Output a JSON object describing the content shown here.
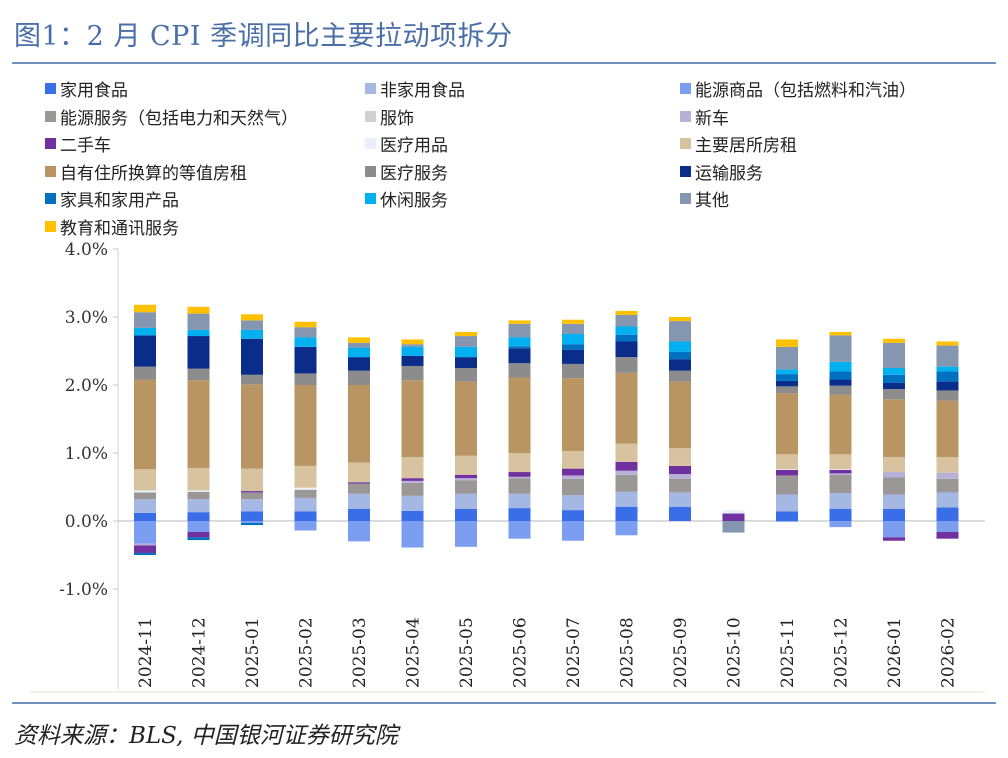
{
  "title": "图1：2 月 CPI 季调同比主要拉动项拆分",
  "source": "资料来源：BLS,  中国银河证券研究院",
  "chart_data": {
    "type": "bar",
    "stacked": true,
    "title": "图1：2 月 CPI 季调同比主要拉动项拆分",
    "xlabel": "",
    "ylabel": "",
    "ylim": [
      -1.0,
      4.0
    ],
    "yticks": [
      "4.0%",
      "3.0%",
      "2.0%",
      "1.0%",
      "0.0%",
      "-1.0%"
    ],
    "ytick_values": [
      4,
      3,
      2,
      1,
      0,
      -1
    ],
    "legend_position": "top",
    "categories": [
      "2024-11",
      "2024-12",
      "2025-01",
      "2025-02",
      "2025-03",
      "2025-04",
      "2025-05",
      "2025-06",
      "2025-07",
      "2025-08",
      "2025-09",
      "2025-10",
      "2025-11",
      "2025-12",
      "2026-01",
      "2026-02"
    ],
    "series": [
      {
        "name": "家用食品",
        "color": "#3a6ee8",
        "values": [
          0.12,
          0.13,
          0.14,
          0.14,
          0.18,
          0.15,
          0.18,
          0.19,
          0.16,
          0.21,
          0.21,
          0,
          0.14,
          0.18,
          0.18,
          0.2
        ]
      },
      {
        "name": "非家用食品",
        "color": "#a5b8e3",
        "values": [
          0.2,
          0.19,
          0.18,
          0.2,
          0.22,
          0.22,
          0.22,
          0.21,
          0.22,
          0.22,
          0.21,
          0,
          0.25,
          0.23,
          0.21,
          0.22
        ]
      },
      {
        "name": "能源商品（包括燃料和汽油）",
        "color": "#7b9ef0",
        "values": [
          -0.33,
          -0.16,
          -0.03,
          -0.14,
          -0.3,
          -0.39,
          -0.38,
          -0.26,
          -0.29,
          -0.21,
          0,
          0,
          -0.01,
          -0.09,
          -0.24,
          -0.16
        ]
      },
      {
        "name": "能源服务（包括电力和天然气）",
        "color": "#9b9797",
        "values": [
          0.1,
          0.11,
          0.1,
          0.12,
          0.15,
          0.19,
          0.2,
          0.23,
          0.24,
          0.25,
          0.2,
          0,
          0.28,
          0.27,
          0.25,
          0.2
        ]
      },
      {
        "name": "服饰",
        "color": "#d0d0d0",
        "values": [
          0,
          0,
          0,
          0,
          0,
          0,
          0,
          0,
          0,
          0,
          0,
          0,
          0,
          0,
          0,
          0
        ]
      },
      {
        "name": "新车",
        "color": "#b9b0d8",
        "values": [
          -0.03,
          0,
          0,
          0,
          0,
          0.03,
          0.03,
          0.02,
          0.05,
          0.06,
          0.07,
          0,
          0,
          0.02,
          0.08,
          0.09
        ]
      },
      {
        "name": "二手车",
        "color": "#7030a0",
        "values": [
          -0.11,
          -0.08,
          0.02,
          0,
          0.02,
          0.04,
          0.05,
          0.07,
          0.1,
          0.13,
          0.12,
          0.11,
          0.08,
          0.05,
          -0.05,
          -0.1
        ]
      },
      {
        "name": "医疗用品",
        "color": "#eaf0fa",
        "values": [
          0.03,
          0.02,
          0,
          0.03,
          0,
          0,
          0,
          0,
          0,
          0,
          0,
          0.05,
          0.01,
          0.01,
          0,
          0
        ]
      },
      {
        "name": "主要居所房租",
        "color": "#d8c3a0",
        "values": [
          0.31,
          0.33,
          0.33,
          0.32,
          0.29,
          0.31,
          0.28,
          0.28,
          0.26,
          0.27,
          0.26,
          0,
          0.22,
          0.22,
          0.22,
          0.23
        ]
      },
      {
        "name": "自有住所换算的等值房租",
        "color": "#b89563",
        "values": [
          1.32,
          1.29,
          1.24,
          1.19,
          1.14,
          1.13,
          1.09,
          1.11,
          1.07,
          1.04,
          0.98,
          0,
          0.9,
          0.88,
          0.85,
          0.83
        ]
      },
      {
        "name": "医疗服务",
        "color": "#8c8c8c",
        "values": [
          0.19,
          0.17,
          0.14,
          0.17,
          0.21,
          0.21,
          0.2,
          0.21,
          0.21,
          0.23,
          0.16,
          0,
          0.1,
          0.13,
          0.15,
          0.15
        ]
      },
      {
        "name": "运输服务",
        "color": "#0a2d8a",
        "values": [
          0.46,
          0.48,
          0.53,
          0.39,
          0.2,
          0.15,
          0.16,
          0.22,
          0.21,
          0.23,
          0.17,
          0,
          0.08,
          0.09,
          0.09,
          0.13
        ]
      },
      {
        "name": "家具和家用产品",
        "color": "#0070c0",
        "values": [
          -0.03,
          -0.04,
          -0.03,
          0,
          0,
          0,
          0,
          0.03,
          0.08,
          0.1,
          0.11,
          0,
          0.1,
          0.12,
          0.12,
          0.15
        ]
      },
      {
        "name": "休闲服务",
        "color": "#00b0f0",
        "values": [
          0.11,
          0.09,
          0.13,
          0.14,
          0.14,
          0.13,
          0.15,
          0.13,
          0.15,
          0.12,
          0.15,
          0,
          0.07,
          0.14,
          0.1,
          0.07
        ]
      },
      {
        "name": "其他",
        "color": "#8496b0",
        "values": [
          0.23,
          0.24,
          0.14,
          0.15,
          0.07,
          0.04,
          0.16,
          0.2,
          0.15,
          0.17,
          0.3,
          -0.17,
          0.33,
          0.39,
          0.37,
          0.31
        ]
      },
      {
        "name": "教育和通讯服务",
        "color": "#ffc000",
        "values": [
          0.11,
          0.1,
          0.09,
          0.08,
          0.08,
          0.07,
          0.06,
          0.05,
          0.06,
          0.06,
          0.06,
          0,
          0.11,
          0.05,
          0.06,
          0.06
        ]
      }
    ]
  }
}
